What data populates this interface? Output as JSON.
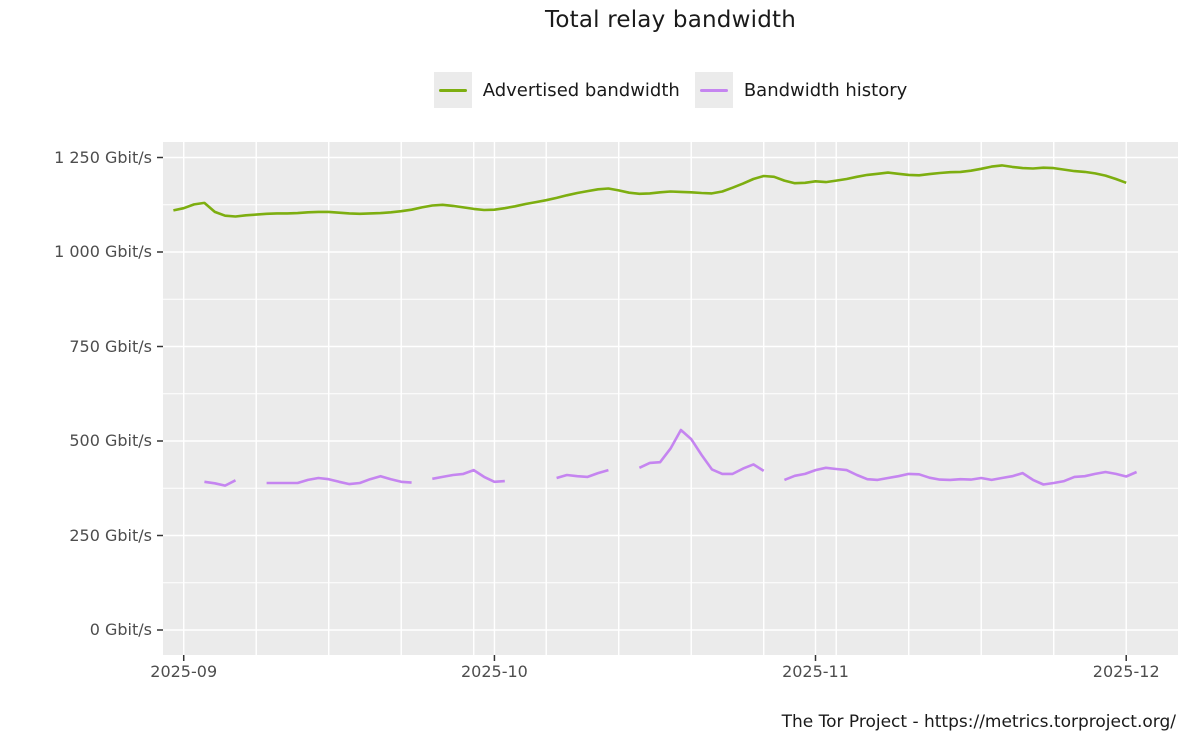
{
  "footer": {
    "text": "The Tor Project - https://metrics.torproject.org/"
  },
  "chart_data": {
    "type": "line",
    "title": "Total relay bandwidth",
    "xlabel": "",
    "ylabel": "Gbit/s",
    "grid": "on",
    "legend_position": "top",
    "panel_background": "#EBEBEB",
    "grid_color": "#FFFFFF",
    "axis_text_color": "#4d4d4d",
    "tick_mark_color": "#333333",
    "x_domain": [
      "2025-08-30",
      "2025-12-06"
    ],
    "ylim": [
      0,
      1250
    ],
    "x_ticks": [
      {
        "date": "2025-09-01",
        "label": "2025-09"
      },
      {
        "date": "2025-10-01",
        "label": "2025-10"
      },
      {
        "date": "2025-11-01",
        "label": "2025-11"
      },
      {
        "date": "2025-12-01",
        "label": "2025-12"
      }
    ],
    "y_ticks": [
      {
        "value": 0,
        "label": "0 Gbit/s"
      },
      {
        "value": 250,
        "label": "250 Gbit/s"
      },
      {
        "value": 500,
        "label": "500 Gbit/s"
      },
      {
        "value": 750,
        "label": "750 Gbit/s"
      },
      {
        "value": 1000,
        "label": "1 000 Gbit/s"
      },
      {
        "value": 1250,
        "label": "1 250 Gbit/s"
      }
    ],
    "y_minor_ticks": [
      125,
      375,
      625,
      875,
      1125
    ],
    "series": [
      {
        "name": "Advertised bandwidth",
        "color": "#7DAE10",
        "unit": "Gbit/s",
        "cadence": "daily",
        "start_date": "2025-08-31",
        "values": [
          1110,
          1116,
          1126,
          1130,
          1106,
          1096,
          1094,
          1097,
          1099,
          1101,
          1102,
          1102,
          1103,
          1105,
          1106,
          1106,
          1104,
          1102,
          1101,
          1102,
          1103,
          1105,
          1108,
          1112,
          1118,
          1123,
          1125,
          1122,
          1118,
          1114,
          1111,
          1112,
          1116,
          1121,
          1127,
          1132,
          1137,
          1143,
          1150,
          1156,
          1161,
          1166,
          1168,
          1163,
          1157,
          1154,
          1155,
          1158,
          1160,
          1159,
          1158,
          1156,
          1155,
          1160,
          1170,
          1181,
          1193,
          1201,
          1199,
          1189,
          1182,
          1183,
          1187,
          1185,
          1189,
          1193,
          1199,
          1204,
          1207,
          1210,
          1207,
          1204,
          1203,
          1206,
          1209,
          1211,
          1212,
          1215,
          1220,
          1226,
          1229,
          1225,
          1222,
          1221,
          1223,
          1222,
          1218,
          1214,
          1212,
          1208,
          1202,
          1193,
          1183
        ]
      },
      {
        "name": "Bandwidth history",
        "color": "#C585F0",
        "unit": "Gbit/s",
        "cadence": "daily",
        "start_date": "2025-08-31",
        "values": [
          null,
          null,
          null,
          392,
          388,
          382,
          396,
          null,
          null,
          389,
          389,
          389,
          389,
          397,
          402,
          399,
          392,
          386,
          389,
          399,
          407,
          399,
          392,
          390,
          null,
          400,
          405,
          410,
          413,
          423,
          405,
          392,
          394,
          null,
          null,
          null,
          null,
          402,
          410,
          407,
          405,
          415,
          423,
          null,
          null,
          429,
          442,
          444,
          480,
          529,
          505,
          463,
          425,
          413,
          413,
          427,
          438,
          421,
          null,
          397,
          408,
          413,
          423,
          429,
          426,
          423,
          410,
          399,
          397,
          402,
          407,
          413,
          412,
          403,
          398,
          397,
          399,
          398,
          402,
          397,
          402,
          407,
          415,
          397,
          385,
          389,
          394,
          405,
          407,
          413,
          418,
          413,
          406,
          418
        ]
      }
    ]
  }
}
